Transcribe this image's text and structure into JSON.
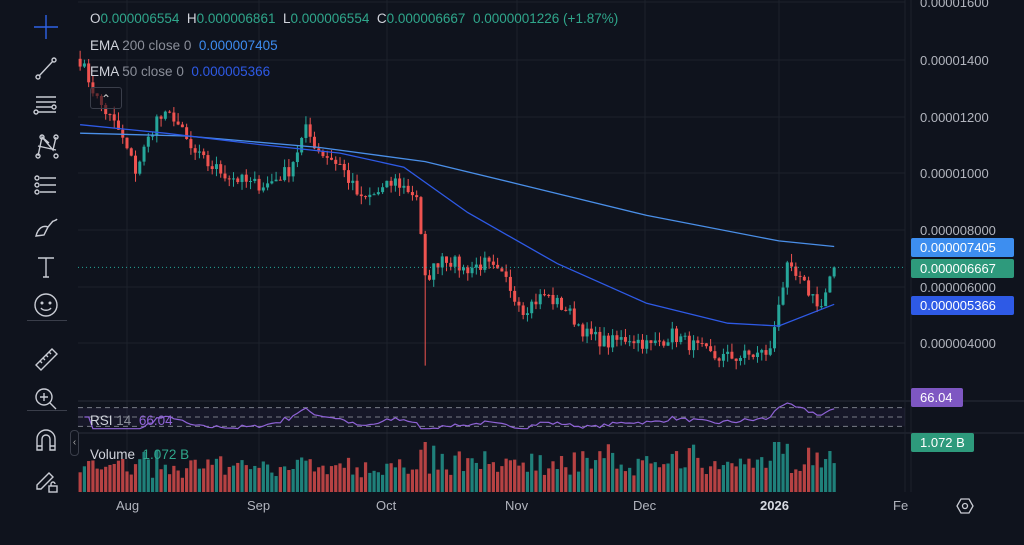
{
  "legend": {
    "o_label": "O",
    "o": "0.000006554",
    "h_label": "H",
    "h": "0.000006861",
    "l_label": "L",
    "l": "0.000006554",
    "c_label": "C",
    "c": "0.000006667",
    "change": "0.0000001226 (+1.87%)",
    "ema200_name": "EMA",
    "ema200_params": "200 close 0",
    "ema200_value": "0.000007405",
    "ema50_name": "EMA",
    "ema50_params": "50 close 0",
    "ema50_value": "0.000005366",
    "rsi_name": "RSI",
    "rsi_params": "14",
    "rsi_value": "66.04",
    "volume_name": "Volume",
    "volume_value": "1.072 B"
  },
  "price_axis": [
    "0.00001600",
    "0.00001400",
    "0.00001200",
    "0.00001000",
    "0.000008000",
    "0.000006000",
    "0.000004000"
  ],
  "price_tags": {
    "ema200": "0.000007405",
    "last": "0.000006667",
    "ema50": "0.000005366",
    "rsi": "66.04",
    "volume": "1.072 B"
  },
  "time_axis": [
    "Aug",
    "Sep",
    "Oct",
    "Nov",
    "Dec",
    "2026",
    "Fe"
  ],
  "colors": {
    "up": "#26a69a",
    "down": "#ef5350",
    "ema200": "#4a8fe8",
    "ema50": "#2e5ae6",
    "rsi": "#8f63d6",
    "background": "#0f131d"
  },
  "toolbar": [
    "crosshair-icon",
    "trend-line-icon",
    "fib-icon",
    "pattern-icon",
    "projection-icon",
    "brush-icon",
    "text-icon",
    "emoji-icon",
    "ruler-icon",
    "zoom-in-icon",
    "magnet-icon",
    "lock-drawings-icon"
  ],
  "chart_data": {
    "type": "candlestick",
    "closes": [
      [
        "2025-07-21",
        1.4e-05
      ],
      [
        "2025-07-25",
        1.26e-05
      ],
      [
        "2025-07-30",
        1.15e-05
      ],
      [
        "2025-08-03",
        1.01e-05
      ],
      [
        "2025-08-08",
        1.19e-05
      ],
      [
        "2025-08-12",
        1.2e-05
      ],
      [
        "2025-08-16",
        1.08e-05
      ],
      [
        "2025-08-20",
        1.03e-05
      ],
      [
        "2025-08-25",
        9.9e-06
      ],
      [
        "2025-08-30",
        9.6e-06
      ],
      [
        "2025-09-03",
        9.6e-06
      ],
      [
        "2025-09-08",
        1.01e-05
      ],
      [
        "2025-09-12",
        1.15e-05
      ],
      [
        "2025-09-15",
        1.08e-05
      ],
      [
        "2025-09-20",
        1.03e-05
      ],
      [
        "2025-09-25",
        9e-06
      ],
      [
        "2025-09-30",
        9.4e-06
      ],
      [
        "2025-10-03",
        9.7e-06
      ],
      [
        "2025-10-08",
        9.2e-06
      ],
      [
        "2025-10-10",
        6.2e-06
      ],
      [
        "2025-10-14",
        7.1e-06
      ],
      [
        "2025-10-19",
        6.6e-06
      ],
      [
        "2025-10-24",
        6.8e-06
      ],
      [
        "2025-10-29",
        6.2e-06
      ],
      [
        "2025-11-02",
        5.2e-06
      ],
      [
        "2025-11-07",
        5.7e-06
      ],
      [
        "2025-11-12",
        5.2e-06
      ],
      [
        "2025-11-17",
        4.3e-06
      ],
      [
        "2025-11-22",
        4e-06
      ],
      [
        "2025-11-27",
        4.2e-06
      ],
      [
        "2025-12-02",
        3.9e-06
      ],
      [
        "2025-12-07",
        4.3e-06
      ],
      [
        "2025-12-12",
        3.9e-06
      ],
      [
        "2025-12-17",
        3.5e-06
      ],
      [
        "2025-12-22",
        3.5e-06
      ],
      [
        "2025-12-27",
        3.6e-06
      ],
      [
        "2025-12-30",
        3.7e-06
      ],
      [
        "2026-01-01",
        5.5e-06
      ],
      [
        "2026-01-03",
        6.6e-06
      ],
      [
        "2026-01-07",
        6e-06
      ],
      [
        "2026-01-11",
        5.3e-06
      ],
      [
        "2026-01-14",
        6.667e-06
      ]
    ],
    "ema200": [
      [
        "2025-07-21",
        1.14e-05
      ],
      [
        "2025-08-15",
        1.13e-05
      ],
      [
        "2025-09-15",
        1.09e-05
      ],
      [
        "2025-10-10",
        1.04e-05
      ],
      [
        "2025-11-01",
        9.6e-06
      ],
      [
        "2025-12-01",
        8.5e-06
      ],
      [
        "2026-01-01",
        7.6e-06
      ],
      [
        "2026-01-14",
        7.405e-06
      ]
    ],
    "ema50": [
      [
        "2025-07-21",
        1.17e-05
      ],
      [
        "2025-08-10",
        1.14e-05
      ],
      [
        "2025-09-01",
        1.1e-05
      ],
      [
        "2025-09-20",
        1.07e-05
      ],
      [
        "2025-10-05",
        1.02e-05
      ],
      [
        "2025-10-20",
        8.6e-06
      ],
      [
        "2025-11-10",
        6.8e-06
      ],
      [
        "2025-12-01",
        5.4e-06
      ],
      [
        "2025-12-20",
        4.7e-06
      ],
      [
        "2026-01-01",
        4.6e-06
      ],
      [
        "2026-01-14",
        5.366e-06
      ]
    ],
    "ylim": [
      2.8e-06,
      1.61e-05
    ],
    "rsi_bands": [
      30,
      50,
      70
    ],
    "grid": true
  }
}
